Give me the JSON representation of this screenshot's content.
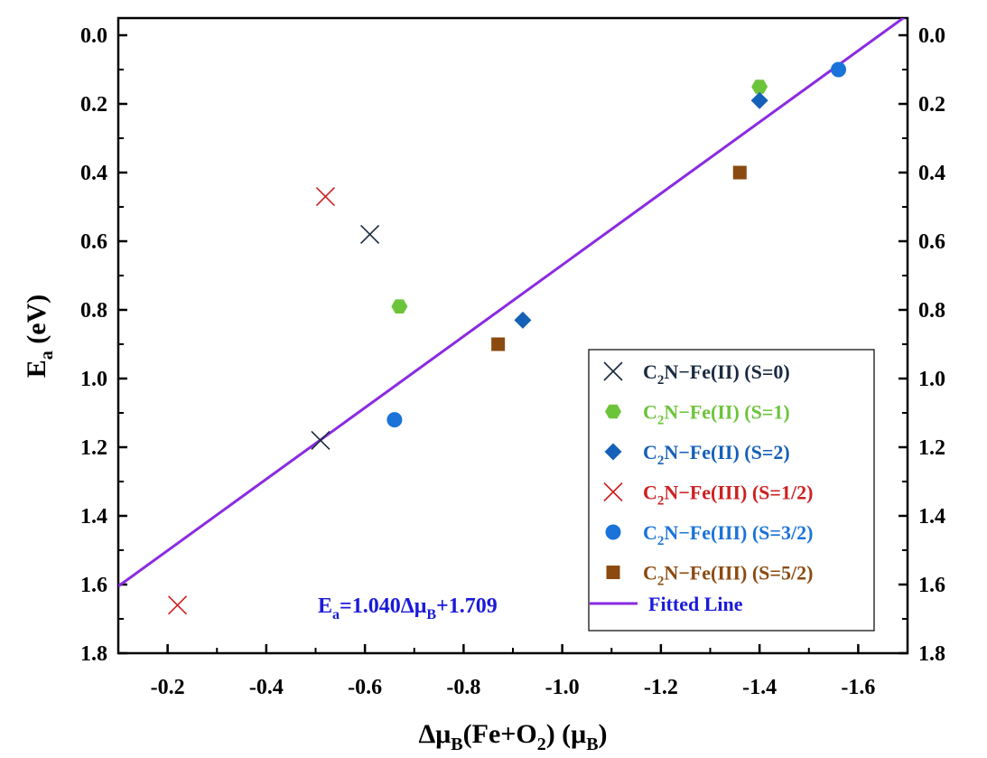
{
  "chart_data": {
    "type": "scatter",
    "xlabel": "Δμ_B(Fe+O_2) (μ_B)",
    "xlabel_parts": {
      "main": "Δμ",
      "sub1": "B",
      "mid": "(Fe+O",
      "sub2": "2",
      "end": ") (μ",
      "sub3": "B",
      "close": ")"
    },
    "ylabel": "E_a (eV)",
    "ylabel_parts": {
      "main": "E",
      "sub": "a",
      "rest": " (eV)"
    },
    "x_reversed": true,
    "y_reversed": true,
    "xlim": [
      -0.1,
      -1.7
    ],
    "ylim": [
      -0.05,
      1.8
    ],
    "x_ticks": [
      -0.2,
      -0.4,
      -0.6,
      -0.8,
      -1.0,
      -1.2,
      -1.4,
      -1.6
    ],
    "x_tick_labels": [
      "-0.2",
      "-0.4",
      "-0.6",
      "-0.8",
      "-1.0",
      "-1.2",
      "-1.4",
      "-1.6"
    ],
    "y_ticks": [
      0.0,
      0.2,
      0.4,
      0.6,
      0.8,
      1.0,
      1.2,
      1.4,
      1.6,
      1.8
    ],
    "y_tick_labels": [
      "0.0",
      "0.2",
      "0.4",
      "0.6",
      "0.8",
      "1.0",
      "1.2",
      "1.4",
      "1.6",
      "1.8"
    ],
    "right_y_axis_mirrored": true,
    "grid": false,
    "legend_position": "bottom-right",
    "series": [
      {
        "name": "C2N−Fe(II) (S=0)",
        "label_parts": {
          "a": "C",
          "sub": "2",
          "b": "N−Fe(II) (S=0)"
        },
        "marker": "x",
        "color": "#1a2a40",
        "points": [
          [
            -0.61,
            0.58
          ],
          [
            -0.51,
            1.18
          ]
        ]
      },
      {
        "name": "C2N−Fe(II) (S=1)",
        "label_parts": {
          "a": "C",
          "sub": "2",
          "b": "N−Fe(II) (S=1)"
        },
        "marker": "hexagon",
        "color": "#6cc43a",
        "points": [
          [
            -0.67,
            0.79
          ],
          [
            -1.4,
            0.15
          ]
        ]
      },
      {
        "name": "C2N−Fe(II) (S=2)",
        "label_parts": {
          "a": "C",
          "sub": "2",
          "b": "N−Fe(II) (S=2)"
        },
        "marker": "diamond",
        "color": "#1560b8",
        "points": [
          [
            -0.92,
            0.83
          ],
          [
            -1.4,
            0.19
          ]
        ]
      },
      {
        "name": "C2N−Fe(III) (S=1/2)",
        "label_parts": {
          "a": "C",
          "sub": "2",
          "b": "N−Fe(III) (S=1/2)"
        },
        "marker": "x",
        "color": "#cc2020",
        "points": [
          [
            -0.52,
            0.47
          ],
          [
            -0.22,
            1.66
          ]
        ]
      },
      {
        "name": "C2N−Fe(III) (S=3/2)",
        "label_parts": {
          "a": "C",
          "sub": "2",
          "b": "N−Fe(III) (S=3/2)"
        },
        "marker": "circle",
        "color": "#1a73d9",
        "points": [
          [
            -0.66,
            1.12
          ],
          [
            -1.56,
            0.1
          ]
        ]
      },
      {
        "name": "C2N−Fe(III) (S=5/2)",
        "label_parts": {
          "a": "C",
          "sub": "2",
          "b": "N−Fe(III) (S=5/2)"
        },
        "marker": "square",
        "color": "#8b4a0f",
        "points": [
          [
            -0.87,
            0.9
          ],
          [
            -1.36,
            0.4
          ]
        ]
      }
    ],
    "fit_line": {
      "name": "Fitted Line",
      "slope": 1.04,
      "intercept": 1.709,
      "color": "#8a2be2"
    },
    "annotation": {
      "text": "E_a=1.040Δμ_B+1.709",
      "parts": {
        "e": "E",
        "sub1": "a",
        "mid": "=1.040Δμ",
        "sub2": "B",
        "end": "+1.709"
      },
      "color": "#1a1adb",
      "position": "bottom-center"
    }
  }
}
